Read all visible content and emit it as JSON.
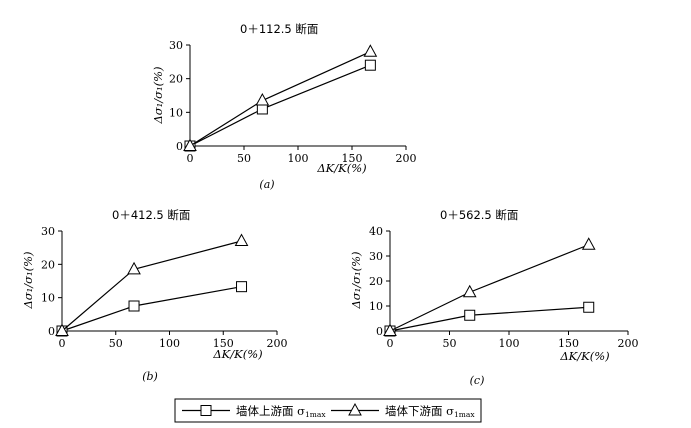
{
  "chart_data": [
    {
      "type": "line",
      "title": "0＋112.5 断面",
      "caption": "(a)",
      "xlabel": "ΔK/K(%)",
      "ylabel": "Δσ₁/σ₁(%)",
      "xlim": [
        0,
        200
      ],
      "ylim": [
        0,
        30
      ],
      "xticks": [
        0,
        50,
        100,
        150,
        200
      ],
      "yticks": [
        0,
        10,
        20,
        30
      ],
      "grid": false,
      "x": [
        0,
        67,
        167
      ],
      "series": [
        {
          "name": "墙体上游面 σ1max",
          "marker": "square",
          "values": [
            0,
            11,
            24
          ]
        },
        {
          "name": "墙体下游面 σ1max",
          "marker": "triangle",
          "values": [
            0,
            13.5,
            28
          ]
        }
      ]
    },
    {
      "type": "line",
      "title": "0＋412.5 断面",
      "caption": "(b)",
      "xlabel": "ΔK/K(%)",
      "ylabel": "Δσ₁/σ₁(%)",
      "xlim": [
        0,
        200
      ],
      "ylim": [
        0,
        30
      ],
      "xticks": [
        0,
        50,
        100,
        150,
        200
      ],
      "yticks": [
        0,
        10,
        20,
        30
      ],
      "grid": false,
      "x": [
        0,
        67,
        167
      ],
      "series": [
        {
          "name": "墙体上游面 σ1max",
          "marker": "square",
          "values": [
            0,
            7.5,
            13.3
          ]
        },
        {
          "name": "墙体下游面 σ1max",
          "marker": "triangle",
          "values": [
            0,
            18.5,
            27
          ]
        }
      ]
    },
    {
      "type": "line",
      "title": "0＋562.5 断面",
      "caption": "(c)",
      "xlabel": "ΔK/K(%)",
      "ylabel": "Δσ₁/σ₁(%)",
      "xlim": [
        0,
        200
      ],
      "ylim": [
        0,
        40
      ],
      "xticks": [
        0,
        50,
        100,
        150,
        200
      ],
      "yticks": [
        0,
        10,
        20,
        30,
        40
      ],
      "grid": false,
      "x": [
        0,
        67,
        167
      ],
      "series": [
        {
          "name": "墙体上游面 σ1max",
          "marker": "square",
          "values": [
            0,
            6.3,
            9.5
          ]
        },
        {
          "name": "墙体下游面 σ1max",
          "marker": "triangle",
          "values": [
            0,
            15.5,
            34.5
          ]
        }
      ]
    }
  ],
  "legend": {
    "placement": "bottom-center",
    "items": [
      {
        "label": "墙体上游面 σ",
        "sub": "1max",
        "marker": "square"
      },
      {
        "label": "墙体下游面 σ",
        "sub": "1max",
        "marker": "triangle"
      }
    ]
  }
}
